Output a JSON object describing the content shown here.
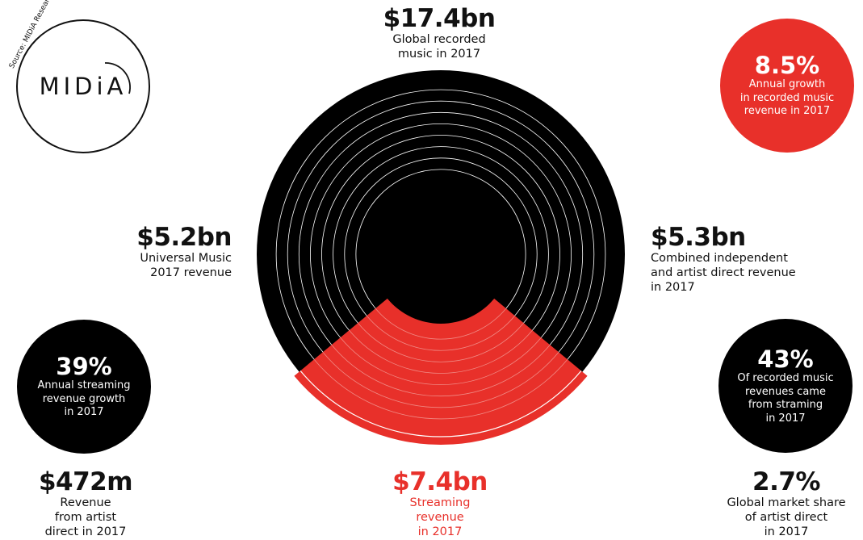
{
  "source": "Source: MIDiA Research",
  "logo": {
    "text": "MIDiA"
  },
  "colors": {
    "accent": "#e8302a",
    "black": "#000000"
  },
  "center_top": {
    "value": "$17.4bn",
    "line1": "Global recorded",
    "line2": "music in 2017"
  },
  "left_mid": {
    "value": "$5.2bn",
    "line1": "Universal Music",
    "line2": "2017 revenue"
  },
  "right_mid": {
    "value": "$5.3bn",
    "line1": "Combined independent",
    "line2": "and artist direct revenue",
    "line3": "in 2017"
  },
  "bubble_top_right": {
    "value": "8.5%",
    "line1": "Annual growth",
    "line2": "in recorded music",
    "line3": "revenue in 2017"
  },
  "bubble_left": {
    "value": "39%",
    "line1": "Annual streaming",
    "line2": "revenue growth",
    "line3": "in 2017"
  },
  "bubble_right": {
    "value": "43%",
    "line1": "Of recorded music",
    "line2": "revenues came",
    "line3": "from straming",
    "line4": "in 2017"
  },
  "bottom_left": {
    "value": "$472m",
    "line1": "Revenue",
    "line2": "from artist",
    "line3": "direct in 2017"
  },
  "bottom_center": {
    "value": "$7.4bn",
    "line1": "Streaming",
    "line2": "revenue",
    "line3": "in 2017"
  },
  "bottom_right": {
    "value": "2.7%",
    "line1": "Global market share",
    "line2": "of artist direct",
    "line3": "in 2017"
  },
  "vinyl": {
    "streaming_share": 0.43
  }
}
